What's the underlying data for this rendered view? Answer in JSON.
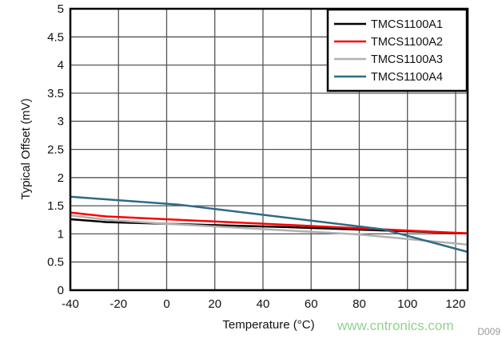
{
  "chart_data": {
    "type": "line",
    "xlabel": "Temperature (°C)",
    "ylabel": "Typical Offset (mV)",
    "xlim": [
      -40,
      125
    ],
    "ylim": [
      0,
      5
    ],
    "xticks": [
      -40,
      -20,
      0,
      20,
      40,
      60,
      80,
      100,
      120
    ],
    "yticks": [
      "0",
      "0.5",
      "1",
      "1.5",
      "2",
      "2.5",
      "3",
      "3.5",
      "4",
      "4.5",
      "5"
    ],
    "grid": true,
    "legend_position": "top-right",
    "series": [
      {
        "name": "TMCS1100A1",
        "color": "#000000",
        "x": [
          -40,
          -25,
          50,
          125
        ],
        "y": [
          1.26,
          1.21,
          1.12,
          1.01
        ]
      },
      {
        "name": "TMCS1100A2",
        "color": "#ff0000",
        "x": [
          -40,
          -25,
          125
        ],
        "y": [
          1.38,
          1.31,
          1.01
        ]
      },
      {
        "name": "TMCS1100A3",
        "color": "#b0b0b0",
        "x": [
          -40,
          -25,
          0,
          80,
          125
        ],
        "y": [
          1.33,
          1.25,
          1.18,
          0.99,
          0.81
        ]
      },
      {
        "name": "TMCS1100A4",
        "color": "#2e6a85",
        "x": [
          -40,
          5,
          90,
          125
        ],
        "y": [
          1.66,
          1.52,
          1.08,
          0.68
        ]
      }
    ]
  },
  "watermark": "www.cntronics.com",
  "figure_id": "D009"
}
